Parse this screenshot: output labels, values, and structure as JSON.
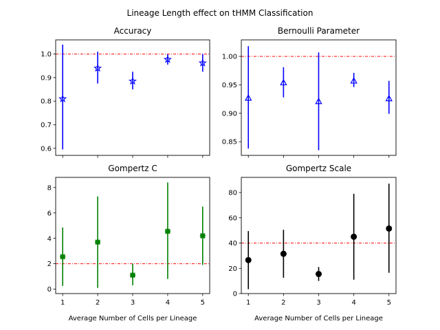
{
  "figure": {
    "title": "Lineage Length effect on tHMM Classification"
  },
  "chart_data": [
    {
      "type": "scatter",
      "title": "Accuracy",
      "xlabel": "",
      "x": [
        1,
        2,
        3,
        4,
        5
      ],
      "y": [
        0.81,
        0.94,
        0.885,
        0.977,
        0.962
      ],
      "yerr_low": [
        0.595,
        0.875,
        0.85,
        0.955,
        0.925
      ],
      "yerr_high": [
        1.04,
        1.01,
        0.925,
        0.999,
        1.0
      ],
      "reference_line": 1.0,
      "xlim": [
        0.8,
        5.2
      ],
      "ylim": [
        0.57,
        1.06
      ],
      "yticks": [
        0.6,
        0.7,
        0.8,
        0.9,
        1.0
      ],
      "ytick_labels": [
        "0.6",
        "0.7",
        "0.8",
        "0.9",
        "1.0"
      ],
      "xticks": [
        1,
        2,
        3,
        4,
        5
      ],
      "show_xtick_labels": false,
      "marker": "star",
      "color": "#0000ff",
      "ref_color": "#ff0000"
    },
    {
      "type": "scatter",
      "title": "Bernoulli Parameter",
      "xlabel": "",
      "x": [
        1,
        2,
        3,
        4,
        5
      ],
      "y": [
        0.927,
        0.954,
        0.921,
        0.957,
        0.926
      ],
      "yerr_low": [
        0.838,
        0.928,
        0.835,
        0.946,
        0.899
      ],
      "yerr_high": [
        1.018,
        0.981,
        1.007,
        0.971,
        0.957
      ],
      "reference_line": 1.0,
      "xlim": [
        0.8,
        5.2
      ],
      "ylim": [
        0.826,
        1.029
      ],
      "yticks": [
        0.85,
        0.9,
        0.95,
        1.0
      ],
      "ytick_labels": [
        "0.85",
        "0.90",
        "0.95",
        "1.00"
      ],
      "xticks": [
        1,
        2,
        3,
        4,
        5
      ],
      "show_xtick_labels": false,
      "marker": "triangle",
      "color": "#0000ff",
      "ref_color": "#ff0000"
    },
    {
      "type": "scatter",
      "title": "Gompertz C",
      "xlabel": "Average Number of Cells per Lineage",
      "x": [
        1,
        2,
        3,
        4,
        5
      ],
      "y": [
        2.55,
        3.7,
        1.1,
        4.55,
        4.2
      ],
      "yerr_low": [
        0.25,
        0.1,
        0.3,
        0.8,
        1.9
      ],
      "yerr_high": [
        4.85,
        7.3,
        2.0,
        8.4,
        6.5
      ],
      "reference_line": 2.0,
      "xlim": [
        0.8,
        5.2
      ],
      "ylim": [
        -0.35,
        8.8
      ],
      "yticks": [
        0,
        2,
        4,
        6,
        8
      ],
      "ytick_labels": [
        "0",
        "2",
        "4",
        "6",
        "8"
      ],
      "xticks": [
        1,
        2,
        3,
        4,
        5
      ],
      "xtick_labels": [
        "1",
        "2",
        "3",
        "4",
        "5"
      ],
      "show_xtick_labels": true,
      "marker": "x-filled",
      "color": "#008000",
      "ref_color": "#ff0000"
    },
    {
      "type": "scatter",
      "title": "Gompertz Scale",
      "xlabel": "Average Number of Cells per Lineage",
      "x": [
        1,
        2,
        3,
        4,
        5
      ],
      "y": [
        26.5,
        31.5,
        15.5,
        45.0,
        51.5
      ],
      "yerr_low": [
        3.5,
        12.5,
        10.0,
        11.0,
        16.5
      ],
      "yerr_high": [
        49.5,
        50.5,
        21.0,
        79.0,
        87.0
      ],
      "reference_line": 40.0,
      "xlim": [
        0.8,
        5.2
      ],
      "ylim": [
        0,
        92
      ],
      "yticks": [
        0,
        20,
        40,
        60,
        80
      ],
      "ytick_labels": [
        "0",
        "20",
        "40",
        "60",
        "80"
      ],
      "xticks": [
        1,
        2,
        3,
        4,
        5
      ],
      "xtick_labels": [
        "1",
        "2",
        "3",
        "4",
        "5"
      ],
      "show_xtick_labels": true,
      "marker": "circle",
      "color": "#000000",
      "ref_color": "#ff0000"
    }
  ]
}
